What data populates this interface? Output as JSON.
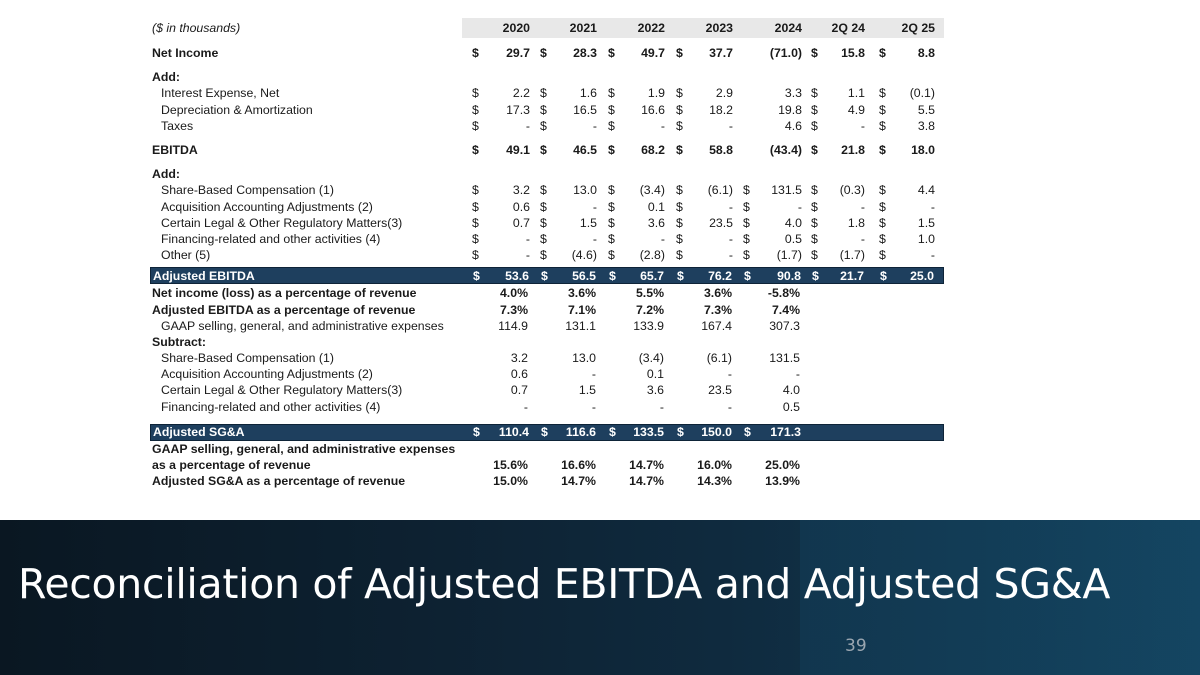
{
  "units_label": "($ in thousands)",
  "periods": [
    "2020",
    "2021",
    "2022",
    "2023",
    "2024",
    "2Q 24",
    "2Q 25"
  ],
  "sections": [
    {
      "kind": "row",
      "label": "Net Income",
      "bold": true,
      "dollars": [
        "$",
        "$",
        "$",
        "$",
        "",
        "$",
        "$"
      ],
      "values": [
        "29.7",
        "28.3",
        "49.7",
        "37.7",
        "(71.0)",
        "15.8",
        "8.8"
      ]
    },
    {
      "kind": "heading",
      "label": "Add:"
    },
    {
      "kind": "row",
      "label": "Interest Expense, Net",
      "indent": true,
      "dollars": [
        "$",
        "$",
        "$",
        "$",
        "",
        "$",
        "$"
      ],
      "values": [
        "2.2",
        "1.6",
        "1.9",
        "2.9",
        "3.3",
        "1.1",
        "(0.1)"
      ]
    },
    {
      "kind": "row",
      "label": "Depreciation & Amortization",
      "indent": true,
      "dollars": [
        "$",
        "$",
        "$",
        "$",
        "",
        "$",
        "$"
      ],
      "values": [
        "17.3",
        "16.5",
        "16.6",
        "18.2",
        "19.8",
        "4.9",
        "5.5"
      ]
    },
    {
      "kind": "row",
      "label": "Taxes",
      "indent": true,
      "dollars": [
        "$",
        "$",
        "$",
        "$",
        "",
        "$",
        "$"
      ],
      "values": [
        "-",
        "-",
        "-",
        "-",
        "4.6",
        "-",
        "3.8"
      ]
    },
    {
      "kind": "row",
      "label": "EBITDA",
      "bold": true,
      "dollars": [
        "$",
        "$",
        "$",
        "$",
        "",
        "$",
        "$"
      ],
      "values": [
        "49.1",
        "46.5",
        "68.2",
        "58.8",
        "(43.4)",
        "21.8",
        "18.0"
      ]
    },
    {
      "kind": "heading",
      "label": "Add:"
    },
    {
      "kind": "row",
      "label": "Share-Based Compensation (1)",
      "indent": true,
      "dollars": [
        "$",
        "$",
        "$",
        "$",
        "$",
        "$",
        "$"
      ],
      "values": [
        "3.2",
        "13.0",
        "(3.4)",
        "(6.1)",
        "131.5",
        "(0.3)",
        "4.4"
      ]
    },
    {
      "kind": "row",
      "label": "Acquisition Accounting Adjustments (2)",
      "indent": true,
      "dollars": [
        "$",
        "$",
        "$",
        "$",
        "$",
        "$",
        "$"
      ],
      "values": [
        "0.6",
        "-",
        "0.1",
        "-",
        "-",
        "-",
        "-"
      ]
    },
    {
      "kind": "row",
      "label": "Certain Legal & Other Regulatory Matters(3)",
      "indent": true,
      "dollars": [
        "$",
        "$",
        "$",
        "$",
        "$",
        "$",
        "$"
      ],
      "values": [
        "0.7",
        "1.5",
        "3.6",
        "23.5",
        "4.0",
        "1.8",
        "1.5"
      ]
    },
    {
      "kind": "row",
      "label": "Financing-related and other activities (4)",
      "indent": true,
      "dollars": [
        "$",
        "$",
        "$",
        "$",
        "$",
        "$",
        "$"
      ],
      "values": [
        "-",
        "-",
        "-",
        "-",
        "0.5",
        "-",
        "1.0"
      ]
    },
    {
      "kind": "row",
      "label": "Other (5)",
      "indent": true,
      "dollars": [
        "$",
        "$",
        "$",
        "$",
        "$",
        "$",
        "$"
      ],
      "values": [
        "-",
        "(4.6)",
        "(2.8)",
        "-",
        "(1.7)",
        "(1.7)",
        "-"
      ]
    },
    {
      "kind": "total",
      "label": "Adjusted EBITDA",
      "dollars": [
        "$",
        "$",
        "$",
        "$",
        "$",
        "$",
        "$"
      ],
      "values": [
        "53.6",
        "56.5",
        "65.7",
        "76.2",
        "90.8",
        "21.7",
        "25.0"
      ]
    },
    {
      "kind": "pct",
      "label": "Net income (loss) as a percentage of revenue",
      "bold": true,
      "values": [
        "4.0%",
        "3.6%",
        "5.5%",
        "3.6%",
        "-5.8%"
      ]
    },
    {
      "kind": "pct",
      "label": "Adjusted EBITDA as a percentage of revenue",
      "bold": true,
      "values": [
        "7.3%",
        "7.1%",
        "7.2%",
        "7.3%",
        "7.4%"
      ]
    },
    {
      "kind": "pct",
      "label": "GAAP selling, general, and administrative expenses",
      "indent": true,
      "values": [
        "114.9",
        "131.1",
        "133.9",
        "167.4",
        "307.3"
      ]
    },
    {
      "kind": "heading",
      "label": "Subtract:"
    },
    {
      "kind": "pct",
      "label": "Share-Based Compensation (1)",
      "indent": true,
      "values": [
        "3.2",
        "13.0",
        "(3.4)",
        "(6.1)",
        "131.5"
      ]
    },
    {
      "kind": "pct",
      "label": "Acquisition Accounting Adjustments (2)",
      "indent": true,
      "values": [
        "0.6",
        "-",
        "0.1",
        "-",
        "-"
      ]
    },
    {
      "kind": "pct",
      "label": "Certain Legal & Other Regulatory Matters(3)",
      "indent": true,
      "values": [
        "0.7",
        "1.5",
        "3.6",
        "23.5",
        "4.0"
      ]
    },
    {
      "kind": "pct",
      "label": "Financing-related and other activities (4)",
      "indent": true,
      "values": [
        "-",
        "-",
        "-",
        "-",
        "0.5"
      ]
    },
    {
      "kind": "total5",
      "label": "Adjusted SG&A",
      "dollars": [
        "$",
        "$",
        "$",
        "$",
        "$"
      ],
      "values": [
        "110.4",
        "116.6",
        "133.5",
        "150.0",
        "171.3"
      ]
    },
    {
      "kind": "heading",
      "label": "GAAP selling, general, and administrative expenses"
    },
    {
      "kind": "pct",
      "label": "as a percentage of revenue",
      "bold": true,
      "values": [
        "15.6%",
        "16.6%",
        "14.7%",
        "16.0%",
        "25.0%"
      ]
    },
    {
      "kind": "pct",
      "label": "Adjusted SG&A as a percentage of revenue",
      "bold": true,
      "values": [
        "15.0%",
        "14.7%",
        "14.7%",
        "14.3%",
        "13.9%"
      ]
    }
  ],
  "footer": {
    "title": "Reconciliation of Adjusted EBITDA and Adjusted SG&A",
    "page_number": "39"
  },
  "colors": {
    "header_band": "#e8e8e8",
    "total_row_bg": "#1e3f5e",
    "footer_bg": "#0d2131"
  }
}
